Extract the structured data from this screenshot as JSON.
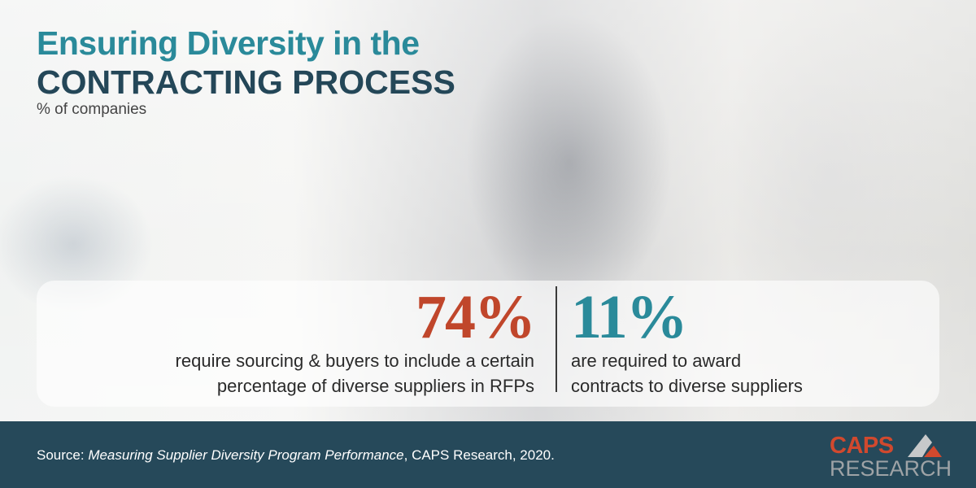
{
  "header": {
    "title_line1": "Ensuring Diversity in the",
    "title_line2": "CONTRACTING PROCESS",
    "subtitle": "% of companies"
  },
  "stats": [
    {
      "value": "74%",
      "description_line1": "require sourcing & buyers to include a certain",
      "description_line2": "percentage of diverse suppliers in RFPs",
      "color": "#c0462b"
    },
    {
      "value": "11%",
      "description_line1": "are required to award",
      "description_line2": "contracts to diverse suppliers",
      "color": "#2a8a9a"
    }
  ],
  "footer": {
    "source_prefix": "Source: ",
    "source_title": "Measuring Supplier Diversity Program Performance",
    "source_suffix": ", CAPS Research, 2020.",
    "background": "#26495a"
  },
  "logo": {
    "line1": "CAPS",
    "line2": "RESEARCH"
  }
}
